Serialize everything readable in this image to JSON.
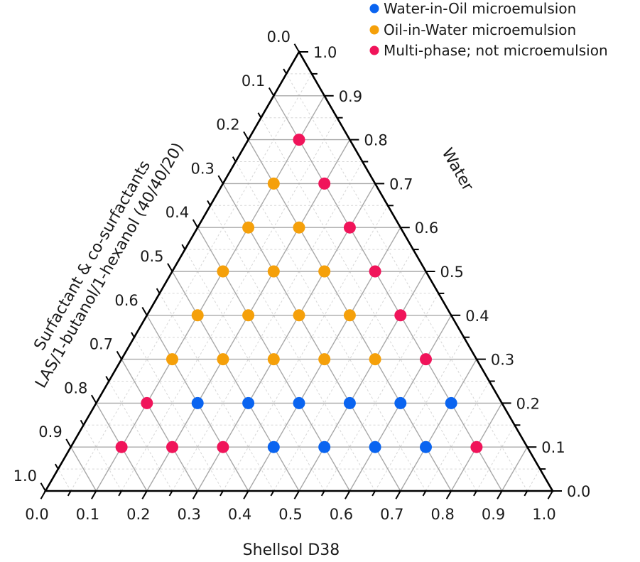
{
  "chart_data": {
    "type": "scatter",
    "subtype": "ternary",
    "title": "",
    "axes": {
      "left": {
        "label_line1": "Surfactant & co-surfactants",
        "label_line2": "LAS/1-butanol/1-hexanol  (40/40/20)",
        "ticks": [
          "0.0",
          "0.1",
          "0.2",
          "0.3",
          "0.4",
          "0.5",
          "0.6",
          "0.7",
          "0.8",
          "0.9",
          "1.0"
        ],
        "range": [
          0,
          1
        ]
      },
      "right": {
        "label": "Water",
        "ticks": [
          "0.0",
          "0.1",
          "0.2",
          "0.3",
          "0.4",
          "0.5",
          "0.6",
          "0.7",
          "0.8",
          "0.9",
          "1.0"
        ],
        "range": [
          0,
          1
        ]
      },
      "bottom": {
        "label": "Shellsol D38",
        "ticks": [
          "0.0",
          "0.1",
          "0.2",
          "0.3",
          "0.4",
          "0.5",
          "0.6",
          "0.7",
          "0.8",
          "0.9",
          "1.0"
        ],
        "range": [
          0,
          1
        ]
      }
    },
    "grid": {
      "major_step": 0.1,
      "minor_step": 0.05
    },
    "legend_position": "top-right",
    "series": [
      {
        "name": "Water-in-Oil microemulsion",
        "color": "#0a64f0",
        "points": [
          {
            "shellsol": 0.2,
            "water": 0.2,
            "surfactant": 0.6
          },
          {
            "shellsol": 0.3,
            "water": 0.2,
            "surfactant": 0.5
          },
          {
            "shellsol": 0.4,
            "water": 0.2,
            "surfactant": 0.4
          },
          {
            "shellsol": 0.5,
            "water": 0.2,
            "surfactant": 0.3
          },
          {
            "shellsol": 0.6,
            "water": 0.2,
            "surfactant": 0.2
          },
          {
            "shellsol": 0.7,
            "water": 0.2,
            "surfactant": 0.1
          },
          {
            "shellsol": 0.4,
            "water": 0.1,
            "surfactant": 0.5
          },
          {
            "shellsol": 0.5,
            "water": 0.1,
            "surfactant": 0.4
          },
          {
            "shellsol": 0.6,
            "water": 0.1,
            "surfactant": 0.3
          },
          {
            "shellsol": 0.7,
            "water": 0.1,
            "surfactant": 0.2
          }
        ]
      },
      {
        "name": "Oil-in-Water microemulsion",
        "color": "#f5a00a",
        "points": [
          {
            "shellsol": 0.1,
            "water": 0.7,
            "surfactant": 0.2
          },
          {
            "shellsol": 0.1,
            "water": 0.6,
            "surfactant": 0.3
          },
          {
            "shellsol": 0.2,
            "water": 0.6,
            "surfactant": 0.2
          },
          {
            "shellsol": 0.1,
            "water": 0.5,
            "surfactant": 0.4
          },
          {
            "shellsol": 0.2,
            "water": 0.5,
            "surfactant": 0.3
          },
          {
            "shellsol": 0.3,
            "water": 0.5,
            "surfactant": 0.2
          },
          {
            "shellsol": 0.1,
            "water": 0.4,
            "surfactant": 0.5
          },
          {
            "shellsol": 0.2,
            "water": 0.4,
            "surfactant": 0.4
          },
          {
            "shellsol": 0.3,
            "water": 0.4,
            "surfactant": 0.3
          },
          {
            "shellsol": 0.4,
            "water": 0.4,
            "surfactant": 0.2
          },
          {
            "shellsol": 0.1,
            "water": 0.3,
            "surfactant": 0.6
          },
          {
            "shellsol": 0.2,
            "water": 0.3,
            "surfactant": 0.5
          },
          {
            "shellsol": 0.3,
            "water": 0.3,
            "surfactant": 0.4
          },
          {
            "shellsol": 0.4,
            "water": 0.3,
            "surfactant": 0.3
          },
          {
            "shellsol": 0.5,
            "water": 0.3,
            "surfactant": 0.2
          }
        ]
      },
      {
        "name": "Multi-phase; not microemulsion",
        "color": "#f0145a",
        "points": [
          {
            "shellsol": 0.1,
            "water": 0.8,
            "surfactant": 0.1
          },
          {
            "shellsol": 0.2,
            "water": 0.7,
            "surfactant": 0.1
          },
          {
            "shellsol": 0.3,
            "water": 0.6,
            "surfactant": 0.1
          },
          {
            "shellsol": 0.4,
            "water": 0.5,
            "surfactant": 0.1
          },
          {
            "shellsol": 0.5,
            "water": 0.4,
            "surfactant": 0.1
          },
          {
            "shellsol": 0.6,
            "water": 0.3,
            "surfactant": 0.1
          },
          {
            "shellsol": 0.1,
            "water": 0.2,
            "surfactant": 0.7
          },
          {
            "shellsol": 0.1,
            "water": 0.1,
            "surfactant": 0.8
          },
          {
            "shellsol": 0.2,
            "water": 0.1,
            "surfactant": 0.7
          },
          {
            "shellsol": 0.3,
            "water": 0.1,
            "surfactant": 0.6
          },
          {
            "shellsol": 0.8,
            "water": 0.1,
            "surfactant": 0.1
          }
        ]
      }
    ]
  }
}
